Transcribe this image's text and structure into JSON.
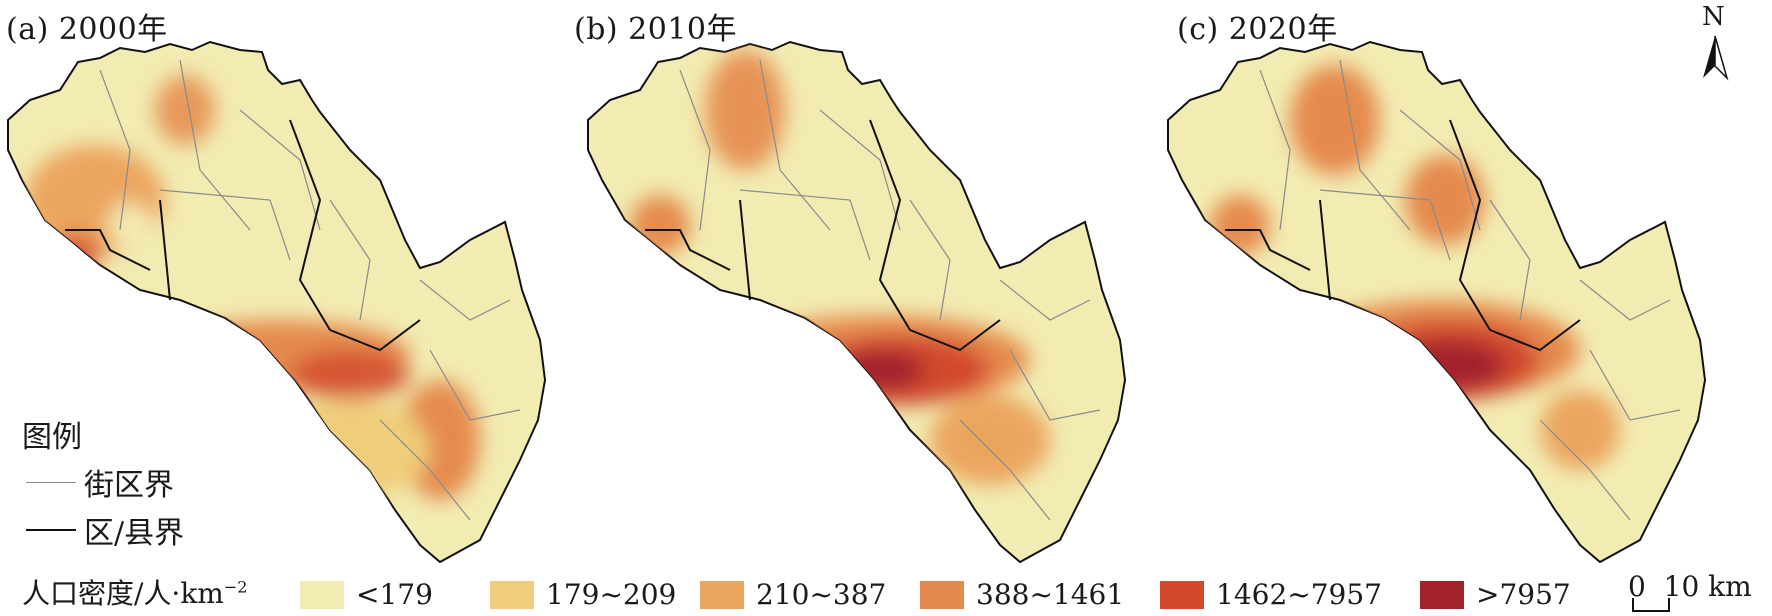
{
  "panels": [
    {
      "label": "(a) 2000年"
    },
    {
      "label": "(b) 2010年"
    },
    {
      "label": "(c) 2020年"
    }
  ],
  "legend": {
    "title": "图例",
    "street_boundary": "街区界",
    "county_boundary": "区/县界"
  },
  "density": {
    "title": "人口密度/人·km",
    "title_sup": "−2",
    "classes": [
      {
        "label": "<179",
        "color": "#f2ecb2"
      },
      {
        "label": "179~209",
        "color": "#efcd7a"
      },
      {
        "label": "210~387",
        "color": "#eba55e"
      },
      {
        "label": "388~1461",
        "color": "#e58a4e"
      },
      {
        "label": "1462~7957",
        "color": "#d24a2e"
      },
      {
        "label": ">7957",
        "color": "#a3232d"
      }
    ]
  },
  "north_arrow": {
    "label": "N"
  },
  "scale_bar": {
    "zero": "0",
    "distance": "10 km"
  }
}
